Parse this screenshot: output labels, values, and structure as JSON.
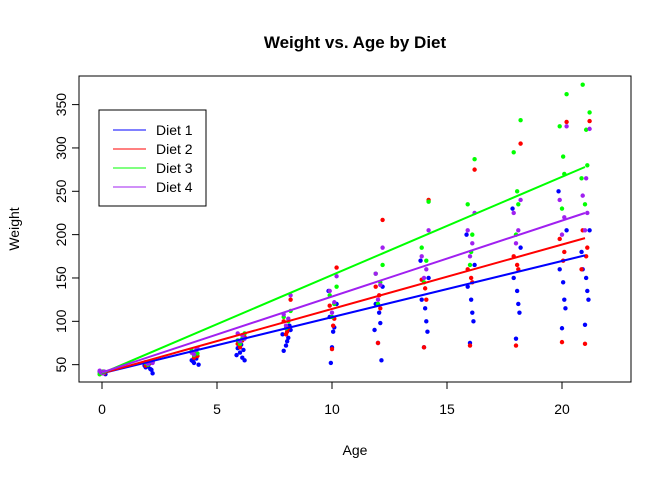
{
  "chart_data": {
    "type": "scatter",
    "title": "Weight vs. Age by Diet",
    "xlabel": "Age",
    "ylabel": "Weight",
    "xlim": [
      -1,
      23
    ],
    "ylim": [
      30,
      383
    ],
    "xticks": [
      0,
      5,
      10,
      15,
      20
    ],
    "yticks": [
      50,
      100,
      150,
      200,
      250,
      300,
      350
    ],
    "grid": false,
    "legend_position": "top-left",
    "series": [
      {
        "name": "Diet 1",
        "color": "#0000ff",
        "fit_line": [
          [
            0,
            40
          ],
          [
            21,
            176
          ]
        ],
        "points": [
          [
            0.1,
            41
          ],
          [
            0.05,
            40
          ],
          [
            -0.1,
            42
          ],
          [
            0.15,
            39
          ],
          [
            -0.05,
            41
          ],
          [
            2.0,
            48
          ],
          [
            2.1,
            45
          ],
          [
            1.9,
            47
          ],
          [
            2.2,
            40
          ],
          [
            2.05,
            51
          ],
          [
            2.15,
            44
          ],
          [
            1.85,
            49
          ],
          [
            4.0,
            52
          ],
          [
            4.1,
            57
          ],
          [
            3.9,
            55
          ],
          [
            4.2,
            50
          ],
          [
            4.05,
            59
          ],
          [
            3.95,
            54
          ],
          [
            6.0,
            64
          ],
          [
            6.1,
            58
          ],
          [
            5.9,
            69
          ],
          [
            6.2,
            55
          ],
          [
            6.05,
            73
          ],
          [
            5.85,
            61
          ],
          [
            6.15,
            67
          ],
          [
            8.0,
            72
          ],
          [
            8.1,
            81
          ],
          [
            7.9,
            66
          ],
          [
            8.2,
            90
          ],
          [
            8.05,
            77
          ],
          [
            7.85,
            85
          ],
          [
            8.15,
            95
          ],
          [
            10.0,
            70
          ],
          [
            10.1,
            93
          ],
          [
            9.9,
            105
          ],
          [
            10.2,
            120
          ],
          [
            10.05,
            88
          ],
          [
            9.85,
            135
          ],
          [
            9.95,
            52
          ],
          [
            12.0,
            75
          ],
          [
            12.1,
            98
          ],
          [
            11.9,
            120
          ],
          [
            12.2,
            140
          ],
          [
            12.05,
            110
          ],
          [
            11.85,
            90
          ],
          [
            12.15,
            55
          ],
          [
            14.0,
            70
          ],
          [
            14.1,
            100
          ],
          [
            13.9,
            125
          ],
          [
            14.2,
            150
          ],
          [
            14.05,
            115
          ],
          [
            13.85,
            170
          ],
          [
            14.15,
            88
          ],
          [
            16.0,
            75
          ],
          [
            16.1,
            110
          ],
          [
            15.9,
            140
          ],
          [
            16.2,
            165
          ],
          [
            16.05,
            125
          ],
          [
            15.85,
            200
          ],
          [
            16.15,
            100
          ],
          [
            18.0,
            80
          ],
          [
            18.1,
            120
          ],
          [
            17.9,
            150
          ],
          [
            18.2,
            185
          ],
          [
            18.05,
            135
          ],
          [
            17.85,
            230
          ],
          [
            18.15,
            110
          ],
          [
            20.0,
            92
          ],
          [
            20.1,
            125
          ],
          [
            19.9,
            160
          ],
          [
            20.2,
            205
          ],
          [
            20.05,
            145
          ],
          [
            19.85,
            250
          ],
          [
            20.15,
            115
          ],
          [
            21.0,
            96
          ],
          [
            21.1,
            135
          ],
          [
            20.9,
            160
          ],
          [
            21.2,
            205
          ],
          [
            21.05,
            150
          ],
          [
            20.85,
            180
          ],
          [
            21.15,
            125
          ]
        ]
      },
      {
        "name": "Diet 2",
        "color": "#ff0000",
        "fit_line": [
          [
            0,
            40
          ],
          [
            21,
            196
          ]
        ],
        "points": [
          [
            0.1,
            40
          ],
          [
            -0.05,
            41
          ],
          [
            0.05,
            42
          ],
          [
            -0.1,
            39
          ],
          [
            2.0,
            50
          ],
          [
            2.1,
            52
          ],
          [
            1.9,
            49
          ],
          [
            2.2,
            53
          ],
          [
            4.0,
            58
          ],
          [
            4.1,
            62
          ],
          [
            3.9,
            64
          ],
          [
            4.15,
            60
          ],
          [
            6.0,
            70
          ],
          [
            6.1,
            78
          ],
          [
            5.9,
            74
          ],
          [
            6.2,
            82
          ],
          [
            8.0,
            85
          ],
          [
            8.1,
            92
          ],
          [
            7.9,
            100
          ],
          [
            8.2,
            125
          ],
          [
            8.05,
            88
          ],
          [
            10.0,
            68
          ],
          [
            10.1,
            103
          ],
          [
            9.9,
            118
          ],
          [
            10.2,
            162
          ],
          [
            10.05,
            95
          ],
          [
            12.0,
            75
          ],
          [
            12.1,
            115
          ],
          [
            11.9,
            140
          ],
          [
            12.2,
            217
          ],
          [
            12.05,
            130
          ],
          [
            14.0,
            70
          ],
          [
            14.1,
            125
          ],
          [
            13.9,
            148
          ],
          [
            14.2,
            240
          ],
          [
            14.05,
            138
          ],
          [
            16.0,
            72
          ],
          [
            16.1,
            145
          ],
          [
            15.9,
            160
          ],
          [
            16.2,
            275
          ],
          [
            16.05,
            150
          ],
          [
            18.0,
            72
          ],
          [
            18.1,
            160
          ],
          [
            17.9,
            175
          ],
          [
            18.2,
            305
          ],
          [
            18.05,
            165
          ],
          [
            20.0,
            76
          ],
          [
            20.1,
            180
          ],
          [
            19.9,
            195
          ],
          [
            20.2,
            330
          ],
          [
            20.05,
            170
          ],
          [
            21.0,
            74
          ],
          [
            21.1,
            185
          ],
          [
            20.9,
            205
          ],
          [
            21.2,
            331
          ],
          [
            21.05,
            175
          ],
          [
            20.85,
            160
          ]
        ]
      },
      {
        "name": "Diet 3",
        "color": "#00ff00",
        "fit_line": [
          [
            0,
            40
          ],
          [
            21,
            278
          ]
        ],
        "points": [
          [
            0.1,
            41
          ],
          [
            -0.05,
            40
          ],
          [
            0.05,
            42
          ],
          [
            -0.1,
            39
          ],
          [
            2.0,
            50
          ],
          [
            2.1,
            53
          ],
          [
            1.9,
            52
          ],
          [
            2.2,
            54
          ],
          [
            4.0,
            61
          ],
          [
            4.1,
            64
          ],
          [
            3.9,
            66
          ],
          [
            4.15,
            63
          ],
          [
            6.0,
            74
          ],
          [
            6.1,
            80
          ],
          [
            5.9,
            78
          ],
          [
            6.2,
            86
          ],
          [
            8.0,
            92
          ],
          [
            8.1,
            100
          ],
          [
            7.9,
            105
          ],
          [
            8.2,
            112
          ],
          [
            10.0,
            105
          ],
          [
            10.1,
            120
          ],
          [
            9.9,
            130
          ],
          [
            10.2,
            140
          ],
          [
            12.0,
            120
          ],
          [
            12.1,
            145
          ],
          [
            11.9,
            155
          ],
          [
            12.2,
            165
          ],
          [
            14.0,
            145
          ],
          [
            14.1,
            170
          ],
          [
            13.9,
            185
          ],
          [
            14.2,
            238
          ],
          [
            16.0,
            165
          ],
          [
            16.1,
            200
          ],
          [
            15.9,
            235
          ],
          [
            16.2,
            287
          ],
          [
            16.05,
            180
          ],
          [
            18.0,
            200
          ],
          [
            18.1,
            235
          ],
          [
            17.9,
            295
          ],
          [
            18.2,
            332
          ],
          [
            18.05,
            250
          ],
          [
            20.0,
            230
          ],
          [
            20.1,
            270
          ],
          [
            19.9,
            325
          ],
          [
            20.2,
            362
          ],
          [
            20.05,
            290
          ],
          [
            21.0,
            235
          ],
          [
            21.1,
            280
          ],
          [
            20.9,
            373
          ],
          [
            21.2,
            341
          ],
          [
            21.05,
            321
          ],
          [
            20.85,
            265
          ]
        ]
      },
      {
        "name": "Diet 4",
        "color": "#a020f0",
        "fit_line": [
          [
            0,
            41
          ],
          [
            21,
            225
          ]
        ],
        "points": [
          [
            0.1,
            42
          ],
          [
            -0.05,
            41
          ],
          [
            0.05,
            40
          ],
          [
            -0.1,
            43
          ],
          [
            2.0,
            51
          ],
          [
            2.1,
            54
          ],
          [
            1.9,
            53
          ],
          [
            2.2,
            52
          ],
          [
            4.0,
            62
          ],
          [
            4.1,
            67
          ],
          [
            3.9,
            64
          ],
          [
            4.15,
            69
          ],
          [
            6.0,
            77
          ],
          [
            6.1,
            84
          ],
          [
            5.9,
            86
          ],
          [
            6.2,
            80
          ],
          [
            8.0,
            95
          ],
          [
            8.1,
            103
          ],
          [
            7.9,
            108
          ],
          [
            8.2,
            130
          ],
          [
            10.0,
            110
          ],
          [
            10.1,
            122
          ],
          [
            9.9,
            135
          ],
          [
            10.2,
            152
          ],
          [
            12.0,
            125
          ],
          [
            12.1,
            142
          ],
          [
            11.9,
            155
          ],
          [
            12.2,
            185
          ],
          [
            14.0,
            150
          ],
          [
            14.1,
            160
          ],
          [
            13.9,
            175
          ],
          [
            14.2,
            205
          ],
          [
            16.0,
            175
          ],
          [
            16.1,
            190
          ],
          [
            15.9,
            205
          ],
          [
            16.2,
            225
          ],
          [
            18.0,
            190
          ],
          [
            18.1,
            205
          ],
          [
            17.9,
            225
          ],
          [
            18.2,
            240
          ],
          [
            20.0,
            200
          ],
          [
            20.1,
            220
          ],
          [
            19.9,
            240
          ],
          [
            20.2,
            325
          ],
          [
            21.0,
            205
          ],
          [
            21.1,
            225
          ],
          [
            20.9,
            245
          ],
          [
            21.2,
            322
          ],
          [
            21.05,
            265
          ]
        ]
      }
    ]
  }
}
